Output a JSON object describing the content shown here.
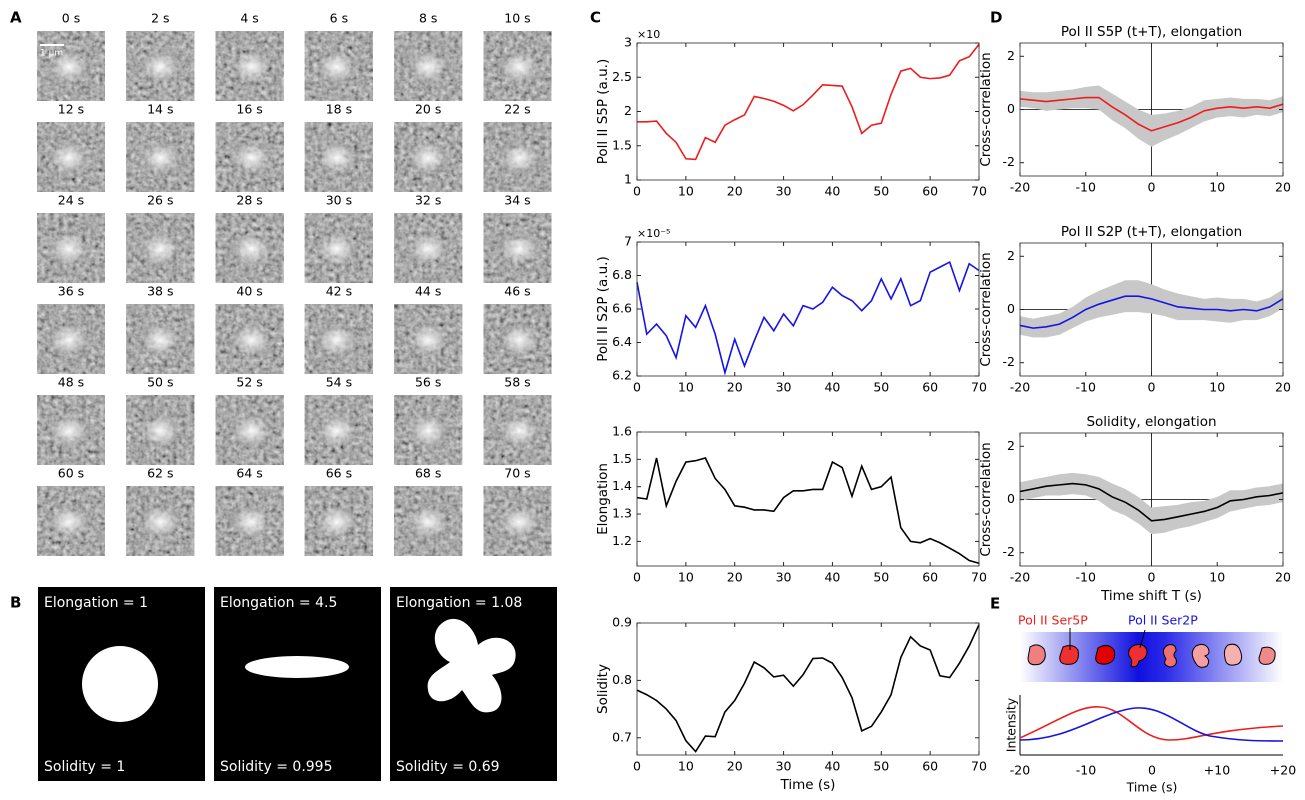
{
  "panel_labels": [
    "A",
    "B",
    "C",
    "D",
    "E"
  ],
  "image_grid": {
    "scale_bar": "1 µm",
    "time_labels": [
      "0 s",
      "2 s",
      "4 s",
      "6 s",
      "8 s",
      "10 s",
      "12 s",
      "14 s",
      "16 s",
      "18 s",
      "20 s",
      "22 s",
      "24 s",
      "26 s",
      "28 s",
      "30 s",
      "32 s",
      "34 s",
      "36 s",
      "38 s",
      "40 s",
      "42 s",
      "44 s",
      "46 s",
      "48 s",
      "50 s",
      "52 s",
      "54 s",
      "56 s",
      "58 s",
      "60 s",
      "62 s",
      "64 s",
      "66 s",
      "68 s",
      "70 s"
    ]
  },
  "shapes": [
    {
      "top": "Elongation = 1",
      "bottom": "Solidity = 1"
    },
    {
      "top": "Elongation = 4.5",
      "bottom": "Solidity = 0.995"
    },
    {
      "top": "Elongation = 1.08",
      "bottom": "Solidity = 0.69"
    }
  ],
  "chart_data": [
    {
      "type": "line",
      "ylabel": "Poll II S5P (a.u.)",
      "exponent_label": "×10",
      "color": "#ee1c1c",
      "x": [
        0,
        2,
        4,
        6,
        8,
        10,
        12,
        14,
        16,
        18,
        20,
        22,
        24,
        26,
        28,
        30,
        32,
        34,
        36,
        38,
        40,
        42,
        44,
        46,
        48,
        50,
        52,
        54,
        56,
        58,
        60,
        62,
        64,
        66,
        68,
        70
      ],
      "values": [
        1.85,
        1.85,
        1.86,
        1.68,
        1.55,
        1.31,
        1.3,
        1.62,
        1.55,
        1.8,
        1.88,
        1.95,
        2.22,
        2.19,
        2.15,
        2.09,
        2.01,
        2.1,
        2.24,
        2.39,
        2.38,
        2.37,
        2.07,
        1.68,
        1.8,
        1.83,
        2.25,
        2.59,
        2.63,
        2.5,
        2.48,
        2.49,
        2.53,
        2.74,
        2.8,
        2.98
      ],
      "xlim": [
        0,
        70
      ],
      "xticks": [
        0,
        10,
        20,
        30,
        40,
        50,
        60,
        70
      ],
      "ylim": [
        1,
        3
      ],
      "yticks": [
        1,
        1.5,
        2,
        2.5,
        3
      ]
    },
    {
      "type": "line",
      "ylabel": "Poll II S2P (a.u.)",
      "exponent_label": "×10⁻⁵",
      "color": "#1414e6",
      "x": [
        0,
        2,
        4,
        6,
        8,
        10,
        12,
        14,
        16,
        18,
        20,
        22,
        24,
        26,
        28,
        30,
        32,
        34,
        36,
        38,
        40,
        42,
        44,
        46,
        48,
        50,
        52,
        54,
        56,
        58,
        60,
        62,
        64,
        66,
        68,
        70
      ],
      "values": [
        6.76,
        6.45,
        6.51,
        6.44,
        6.31,
        6.56,
        6.49,
        6.62,
        6.45,
        6.22,
        6.42,
        6.26,
        6.41,
        6.55,
        6.47,
        6.57,
        6.5,
        6.62,
        6.6,
        6.64,
        6.73,
        6.68,
        6.65,
        6.59,
        6.65,
        6.78,
        6.66,
        6.78,
        6.62,
        6.65,
        6.82,
        6.85,
        6.88,
        6.71,
        6.87,
        6.83
      ],
      "xlim": [
        0,
        70
      ],
      "xticks": [
        0,
        10,
        20,
        30,
        40,
        50,
        60,
        70
      ],
      "ylim": [
        6.2,
        7
      ],
      "yticks": [
        6.2,
        6.4,
        6.6,
        6.8,
        7
      ]
    },
    {
      "type": "line",
      "ylabel": "Elongation",
      "color": "#000000",
      "x": [
        0,
        2,
        4,
        6,
        8,
        10,
        12,
        14,
        16,
        18,
        20,
        22,
        24,
        26,
        28,
        30,
        32,
        34,
        36,
        38,
        40,
        42,
        44,
        46,
        48,
        50,
        52,
        54,
        56,
        58,
        60,
        62,
        64,
        66,
        68,
        70
      ],
      "values": [
        1.36,
        1.355,
        1.505,
        1.33,
        1.42,
        1.49,
        1.495,
        1.505,
        1.43,
        1.39,
        1.33,
        1.325,
        1.315,
        1.315,
        1.31,
        1.36,
        1.385,
        1.385,
        1.39,
        1.39,
        1.49,
        1.47,
        1.365,
        1.475,
        1.39,
        1.4,
        1.435,
        1.25,
        1.2,
        1.195,
        1.21,
        1.195,
        1.175,
        1.155,
        1.13,
        1.12
      ],
      "xlim": [
        0,
        70
      ],
      "xticks": [
        0,
        10,
        20,
        30,
        40,
        50,
        60,
        70
      ],
      "ylim": [
        1.11,
        1.6
      ],
      "yticks": [
        1.2,
        1.3,
        1.4,
        1.5,
        1.6
      ]
    },
    {
      "type": "line",
      "ylabel": "Solidity",
      "xlabel": "Time (s)",
      "color": "#000000",
      "x": [
        0,
        2,
        4,
        6,
        8,
        10,
        12,
        14,
        16,
        18,
        20,
        22,
        24,
        26,
        28,
        30,
        32,
        34,
        36,
        38,
        40,
        42,
        44,
        46,
        48,
        50,
        52,
        54,
        56,
        58,
        60,
        62,
        64,
        66,
        68,
        70
      ],
      "values": [
        0.783,
        0.775,
        0.765,
        0.75,
        0.73,
        0.695,
        0.676,
        0.703,
        0.702,
        0.745,
        0.765,
        0.795,
        0.832,
        0.822,
        0.806,
        0.809,
        0.79,
        0.81,
        0.838,
        0.839,
        0.83,
        0.805,
        0.77,
        0.712,
        0.72,
        0.745,
        0.775,
        0.84,
        0.876,
        0.86,
        0.853,
        0.808,
        0.805,
        0.83,
        0.86,
        0.897
      ],
      "xlim": [
        0,
        70
      ],
      "xticks": [
        0,
        10,
        20,
        30,
        40,
        50,
        60,
        70
      ],
      "ylim": [
        0.67,
        0.9
      ],
      "yticks": [
        0.7,
        0.8,
        0.9
      ]
    },
    {
      "type": "line",
      "title": "Pol II S5P (t+T), elongation",
      "ylabel": "Cross-correlation",
      "color": "#ee1c1c",
      "band_color": "#c8c8c8",
      "zero_lines": true,
      "x": [
        -20,
        -18,
        -16,
        -14,
        -12,
        -10,
        -8,
        -6,
        -4,
        -2,
        0,
        2,
        4,
        6,
        8,
        10,
        12,
        14,
        16,
        18,
        20
      ],
      "values": [
        0.4,
        0.35,
        0.3,
        0.35,
        0.4,
        0.45,
        0.45,
        0.1,
        -0.2,
        -0.55,
        -0.8,
        -0.65,
        -0.5,
        -0.3,
        -0.05,
        0.05,
        0.1,
        0.05,
        0.1,
        0.05,
        0.2
      ],
      "errors": [
        0.3,
        0.3,
        0.35,
        0.35,
        0.35,
        0.4,
        0.45,
        0.5,
        0.5,
        0.55,
        0.6,
        0.5,
        0.45,
        0.4,
        0.4,
        0.35,
        0.35,
        0.35,
        0.3,
        0.3,
        0.3
      ],
      "xlim": [
        -20,
        20
      ],
      "xticks": [
        -20,
        -10,
        0,
        10,
        20
      ],
      "ylim": [
        -2.5,
        2.5
      ],
      "yticks": [
        -2,
        0,
        2
      ]
    },
    {
      "type": "line",
      "title": "Pol II S2P (t+T), elongation",
      "ylabel": "Cross-correlation",
      "color": "#1414e6",
      "band_color": "#c8c8c8",
      "zero_lines": true,
      "x": [
        -20,
        -18,
        -16,
        -14,
        -12,
        -10,
        -8,
        -6,
        -4,
        -2,
        0,
        2,
        4,
        6,
        8,
        10,
        12,
        14,
        16,
        18,
        20
      ],
      "values": [
        -0.6,
        -0.7,
        -0.65,
        -0.55,
        -0.3,
        0,
        0.2,
        0.35,
        0.5,
        0.5,
        0.4,
        0.25,
        0.1,
        0.05,
        0,
        0,
        -0.05,
        0,
        -0.05,
        0.1,
        0.4
      ],
      "errors": [
        0.35,
        0.35,
        0.4,
        0.4,
        0.4,
        0.45,
        0.5,
        0.55,
        0.6,
        0.6,
        0.55,
        0.5,
        0.5,
        0.45,
        0.4,
        0.45,
        0.45,
        0.4,
        0.35,
        0.35,
        0.35
      ],
      "xlim": [
        -20,
        20
      ],
      "xticks": [
        -20,
        -10,
        0,
        10,
        20
      ],
      "ylim": [
        -2.5,
        2.5
      ],
      "yticks": [
        -2,
        0,
        2
      ]
    },
    {
      "type": "line",
      "title": "Solidity, elongation",
      "ylabel": "Cross-correlation",
      "xlabel": "Time shift T (s)",
      "color": "#000000",
      "band_color": "#c8c8c8",
      "zero_lines": true,
      "x": [
        -20,
        -18,
        -16,
        -14,
        -12,
        -10,
        -8,
        -6,
        -4,
        -2,
        0,
        2,
        4,
        6,
        8,
        10,
        12,
        14,
        16,
        18,
        20
      ],
      "values": [
        0.3,
        0.4,
        0.5,
        0.55,
        0.6,
        0.55,
        0.4,
        0.1,
        -0.1,
        -0.4,
        -0.8,
        -0.75,
        -0.65,
        -0.55,
        -0.45,
        -0.3,
        -0.05,
        0,
        0.1,
        0.15,
        0.25
      ],
      "errors": [
        0.35,
        0.35,
        0.35,
        0.4,
        0.4,
        0.4,
        0.45,
        0.5,
        0.5,
        0.5,
        0.5,
        0.5,
        0.45,
        0.45,
        0.4,
        0.4,
        0.4,
        0.35,
        0.35,
        0.35,
        0.35
      ],
      "xlim": [
        -20,
        20
      ],
      "xticks": [
        -20,
        -10,
        0,
        10,
        20
      ],
      "ylim": [
        -2.5,
        2.5
      ],
      "yticks": [
        -2,
        0,
        2
      ]
    }
  ],
  "schematic": {
    "label_ser5p": "Pol II Ser5P",
    "label_ser2p": "Pol II Ser2P",
    "ylabel": "Intensity",
    "xtick_labels": [
      "-20",
      "-10",
      "0",
      "+10",
      "+20"
    ],
    "xlabel": "Time (s)"
  }
}
